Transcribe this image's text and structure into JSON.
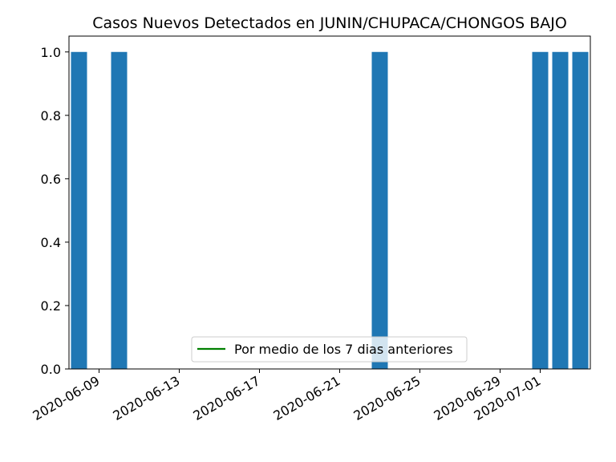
{
  "chart_data": {
    "type": "bar",
    "title": "Casos Nuevos Detectados en JUNIN/CHUPACA/CHONGOS BAJO",
    "xlabel": "",
    "ylabel": "",
    "x_is_date": true,
    "xlim": [
      "2020-06-07T12:00",
      "2020-07-03T12:00"
    ],
    "ylim": [
      0,
      1.05
    ],
    "yticks": [
      0.0,
      0.2,
      0.4,
      0.6,
      0.8,
      1.0
    ],
    "ytick_labels": [
      "0.0",
      "0.2",
      "0.4",
      "0.6",
      "0.8",
      "1.0"
    ],
    "xticks": [
      "2020-06-09",
      "2020-06-13",
      "2020-06-17",
      "2020-06-21",
      "2020-06-25",
      "2020-06-29",
      "2020-07-01"
    ],
    "xtick_labels": [
      "2020-06-09",
      "2020-06-13",
      "2020-06-17",
      "2020-06-21",
      "2020-06-25",
      "2020-06-29",
      "2020-07-01"
    ],
    "grid": false,
    "series": [
      {
        "kind": "bar",
        "color": "#1f77b4",
        "x": [
          "2020-06-08",
          "2020-06-10",
          "2020-06-23",
          "2020-07-01",
          "2020-07-02",
          "2020-07-03"
        ],
        "values": [
          1,
          1,
          1,
          1,
          1,
          1
        ]
      },
      {
        "kind": "line",
        "name": "Por medio de los 7 dias anteriores",
        "color": "#008000",
        "x": [],
        "values": []
      }
    ],
    "legend": {
      "position": "lower center",
      "entries": [
        "Por medio de los 7 dias anteriores"
      ]
    }
  }
}
